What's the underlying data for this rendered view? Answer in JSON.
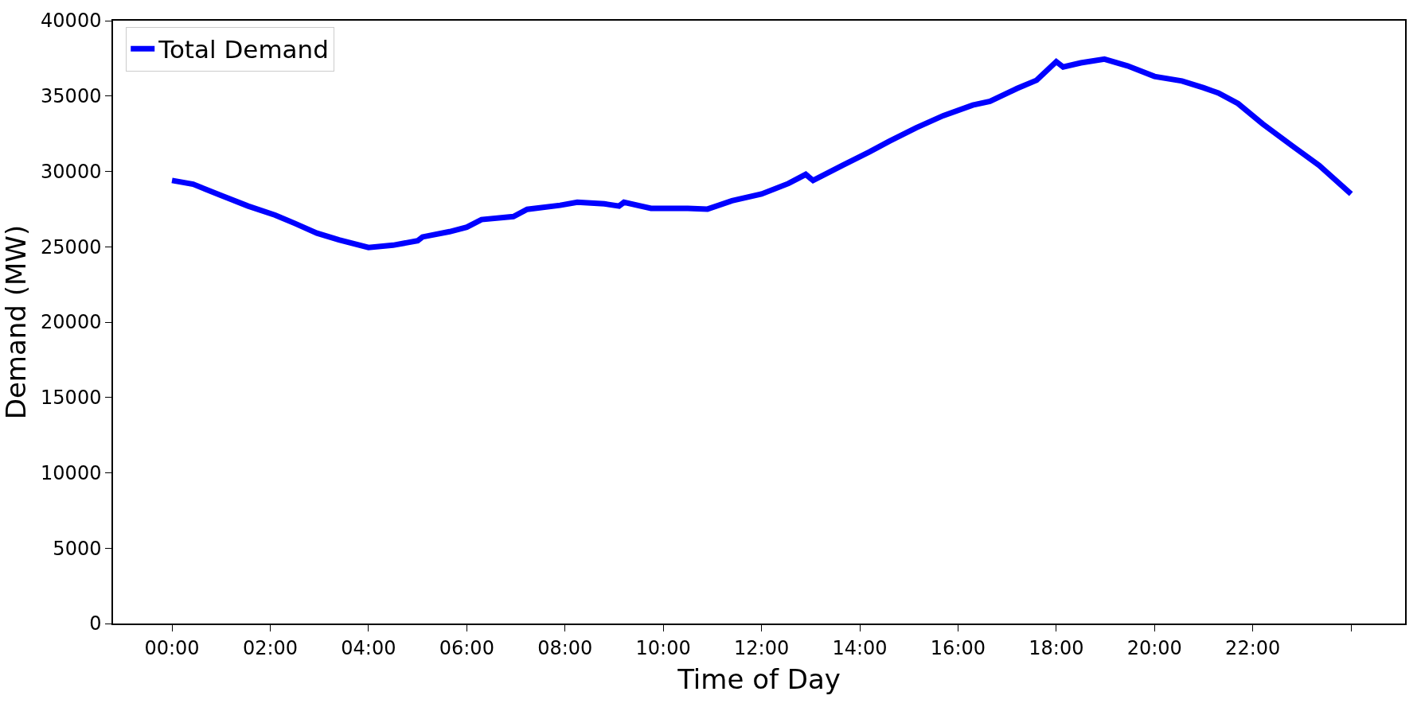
{
  "chart_data": {
    "type": "line",
    "xlabel": "Time of Day",
    "ylabel": "Demand (MW)",
    "x": [
      0,
      0.43,
      1.0,
      1.55,
      2.1,
      2.5,
      2.95,
      3.4,
      4.0,
      4.5,
      5.0,
      5.1,
      5.65,
      6.0,
      6.3,
      6.95,
      7.23,
      7.9,
      8.25,
      8.8,
      9.1,
      9.2,
      9.75,
      10.5,
      10.9,
      11.4,
      12.0,
      12.55,
      12.9,
      13.05,
      13.65,
      14.2,
      14.6,
      15.15,
      15.7,
      16.3,
      16.65,
      17.2,
      17.6,
      18.0,
      18.14,
      18.5,
      18.98,
      19.45,
      20.0,
      20.56,
      21.0,
      21.3,
      21.7,
      22.2,
      22.8,
      23.35,
      24.0
    ],
    "series": [
      {
        "name": "Total Demand",
        "color": "#0000ff",
        "values": [
          29400,
          29150,
          28400,
          27700,
          27100,
          26550,
          25900,
          25450,
          24950,
          25100,
          25400,
          25650,
          26000,
          26300,
          26800,
          27000,
          27480,
          27750,
          27950,
          27850,
          27700,
          27950,
          27550,
          27550,
          27500,
          28050,
          28500,
          29200,
          29800,
          29400,
          30400,
          31300,
          32000,
          32900,
          33700,
          34400,
          34650,
          35500,
          36050,
          37280,
          36930,
          37200,
          37450,
          37000,
          36300,
          36000,
          35550,
          35200,
          34500,
          33150,
          31700,
          30400,
          28500
        ]
      }
    ],
    "xlim": [
      -1.2,
      25.1
    ],
    "ylim": [
      0,
      40000
    ],
    "xticks": [
      {
        "value": 0,
        "label": "00:00"
      },
      {
        "value": 2,
        "label": "02:00"
      },
      {
        "value": 4,
        "label": "04:00"
      },
      {
        "value": 6,
        "label": "06:00"
      },
      {
        "value": 8,
        "label": "08:00"
      },
      {
        "value": 10,
        "label": "10:00"
      },
      {
        "value": 12,
        "label": "12:00"
      },
      {
        "value": 14,
        "label": "14:00"
      },
      {
        "value": 16,
        "label": "16:00"
      },
      {
        "value": 18,
        "label": "18:00"
      },
      {
        "value": 20,
        "label": "20:00"
      },
      {
        "value": 22,
        "label": "22:00"
      },
      {
        "value": 24,
        "label": null
      }
    ],
    "yticks": [
      0,
      5000,
      10000,
      15000,
      20000,
      25000,
      30000,
      35000,
      40000
    ],
    "legend": "top left",
    "marker": "none",
    "line_style": "solid"
  }
}
